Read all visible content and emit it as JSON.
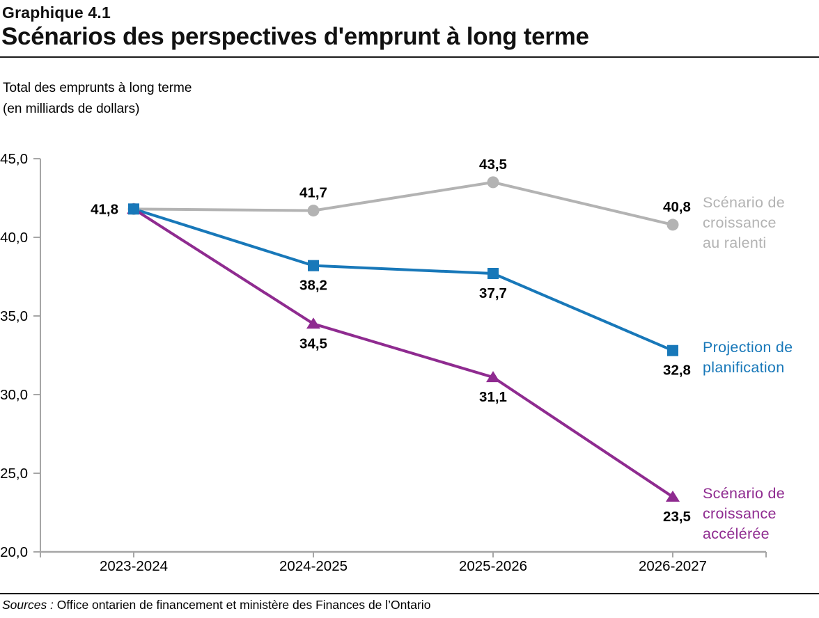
{
  "header": {
    "kicker": "Graphique 4.1",
    "title": "Scénarios des perspectives d'emprunt à long terme"
  },
  "axis_note": {
    "line1": "Total des emprunts à long terme",
    "line2": "(en milliards de dollars)"
  },
  "chart_data": {
    "type": "line",
    "title": "Scénarios des perspectives d'emprunt à long terme",
    "xlabel": "",
    "ylabel": "Total des emprunts à long terme (en milliards de dollars)",
    "categories": [
      "2023-2024",
      "2024-2025",
      "2025-2026",
      "2026-2027"
    ],
    "ylim": [
      20,
      45
    ],
    "yticks": {
      "values": [
        45,
        40,
        35,
        30,
        25,
        20
      ],
      "labels": [
        "45,0",
        "40,0",
        "35,0",
        "30,0",
        "25,0",
        "20,0"
      ]
    },
    "grid": false,
    "legend_position": "right",
    "axis_color": "#a6a6a6",
    "label_color": "#000000",
    "start_label": "41,8",
    "series": [
      {
        "name": "Scénario de croissance au ralenti",
        "legend_lines": [
          "Scénario de",
          "croissance",
          "au ralenti"
        ],
        "color": "#b3b3b3",
        "marker": "circle",
        "values": [
          41.8,
          41.7,
          43.5,
          40.8
        ],
        "value_labels": [
          "41,7",
          "43,5",
          "40,8"
        ],
        "label_side": "above"
      },
      {
        "name": "Projection de planification",
        "legend_lines": [
          "Projection de",
          "planification"
        ],
        "color": "#1878b9",
        "marker": "square",
        "values": [
          41.8,
          38.2,
          37.7,
          32.8
        ],
        "value_labels": [
          "38,2",
          "37,7",
          "32,8"
        ],
        "label_side": "below"
      },
      {
        "name": "Scénario de croissance accélérée",
        "legend_lines": [
          "Scénario de",
          "croissance",
          "accélérée"
        ],
        "color": "#8f2b90",
        "marker": "triangle",
        "values": [
          41.8,
          34.5,
          31.1,
          23.5
        ],
        "value_labels": [
          "34,5",
          "31,1",
          "23,5"
        ],
        "label_side": "below"
      }
    ]
  },
  "source": {
    "label": "Sources :",
    "text": " Office ontarien de financement et ministère des Finances de l’Ontario"
  }
}
